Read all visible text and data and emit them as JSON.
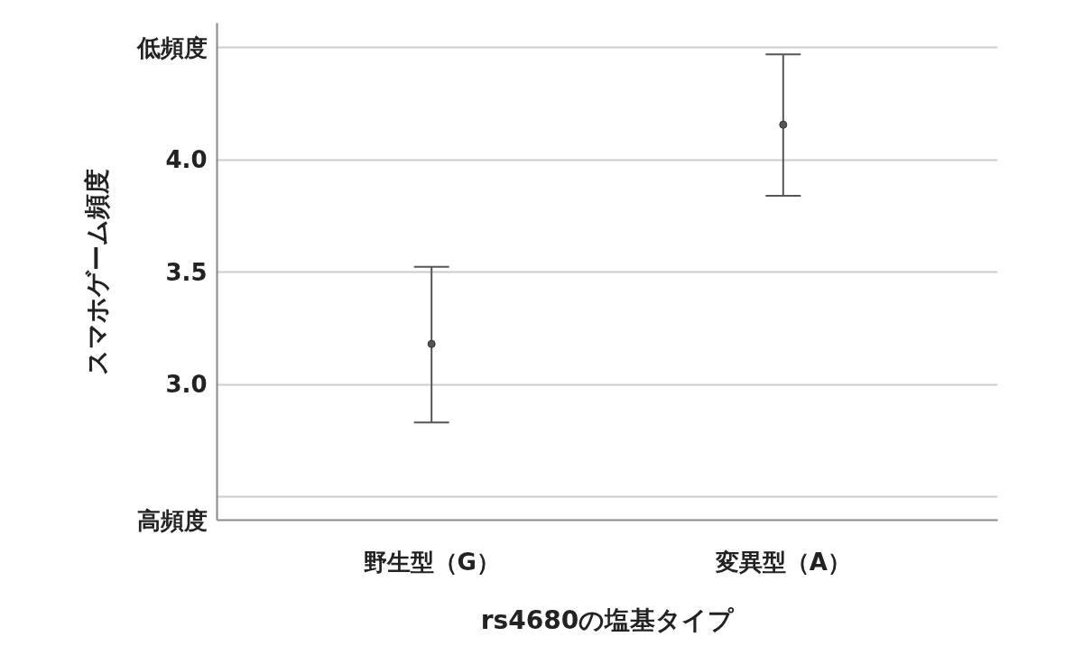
{
  "chart_data": {
    "type": "scatter",
    "xlabel": "rs4680の塩基タイプ",
    "ylabel": "スマホゲーム頻度",
    "categories": [
      "野生型（G）",
      "変異型（A）"
    ],
    "series": [
      {
        "color": "#555555",
        "values": [
          3.18,
          4.157
        ],
        "errors": [
          [
            2.83,
            3.524
          ],
          [
            3.84,
            4.47
          ]
        ]
      }
    ],
    "ylim": [
      2.395,
      4.61
    ],
    "yticks": [
      {
        "value": 2.395,
        "label": "高頻度"
      },
      {
        "value": 2.5,
        "label": null
      },
      {
        "value": 3.0,
        "label": "3.0"
      },
      {
        "value": 3.5,
        "label": "3.5"
      },
      {
        "value": 4.0,
        "label": "4.0"
      },
      {
        "value": 4.5,
        "label": "低頻度"
      }
    ],
    "grid": "y",
    "marker": "circle"
  }
}
